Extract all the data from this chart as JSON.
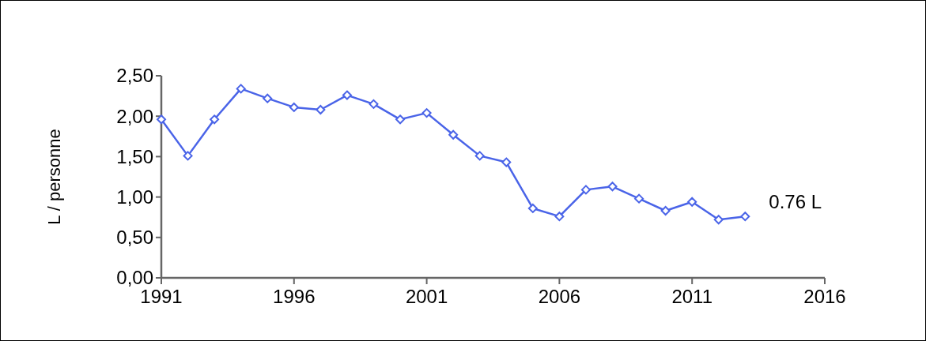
{
  "chart_data": {
    "type": "line",
    "ylabel": "L / personne",
    "x": [
      1991,
      1992,
      1993,
      1994,
      1995,
      1996,
      1997,
      1998,
      1999,
      2000,
      2001,
      2002,
      2003,
      2004,
      2005,
      2006,
      2007,
      2008,
      2009,
      2010,
      2011,
      2012,
      2013
    ],
    "series": [
      {
        "color": "#4a64e8",
        "values": [
          1.96,
          1.51,
          1.96,
          2.34,
          2.22,
          2.11,
          2.08,
          2.26,
          2.15,
          1.96,
          2.04,
          1.77,
          1.51,
          1.43,
          0.86,
          0.76,
          1.09,
          1.13,
          0.98,
          0.83,
          0.94,
          0.72,
          0.76
        ]
      }
    ],
    "xlim": [
      1991,
      2016
    ],
    "xticks": [
      1991,
      1996,
      2001,
      2006,
      2011,
      2016
    ],
    "ylim": [
      0,
      2.5
    ],
    "yticks": [
      {
        "value": 0,
        "label": "0,00"
      },
      {
        "value": 0.5,
        "label": "0,50"
      },
      {
        "value": 1,
        "label": "1,00"
      },
      {
        "value": 1.5,
        "label": "1,50"
      },
      {
        "value": 2,
        "label": "2,00"
      },
      {
        "value": 2.5,
        "label": "2,50"
      }
    ],
    "annotations": [
      {
        "text": "0.76 L",
        "x": 2013,
        "y": 0.76
      }
    ],
    "marker": "diamond",
    "line_style": "solid",
    "grid": false
  }
}
